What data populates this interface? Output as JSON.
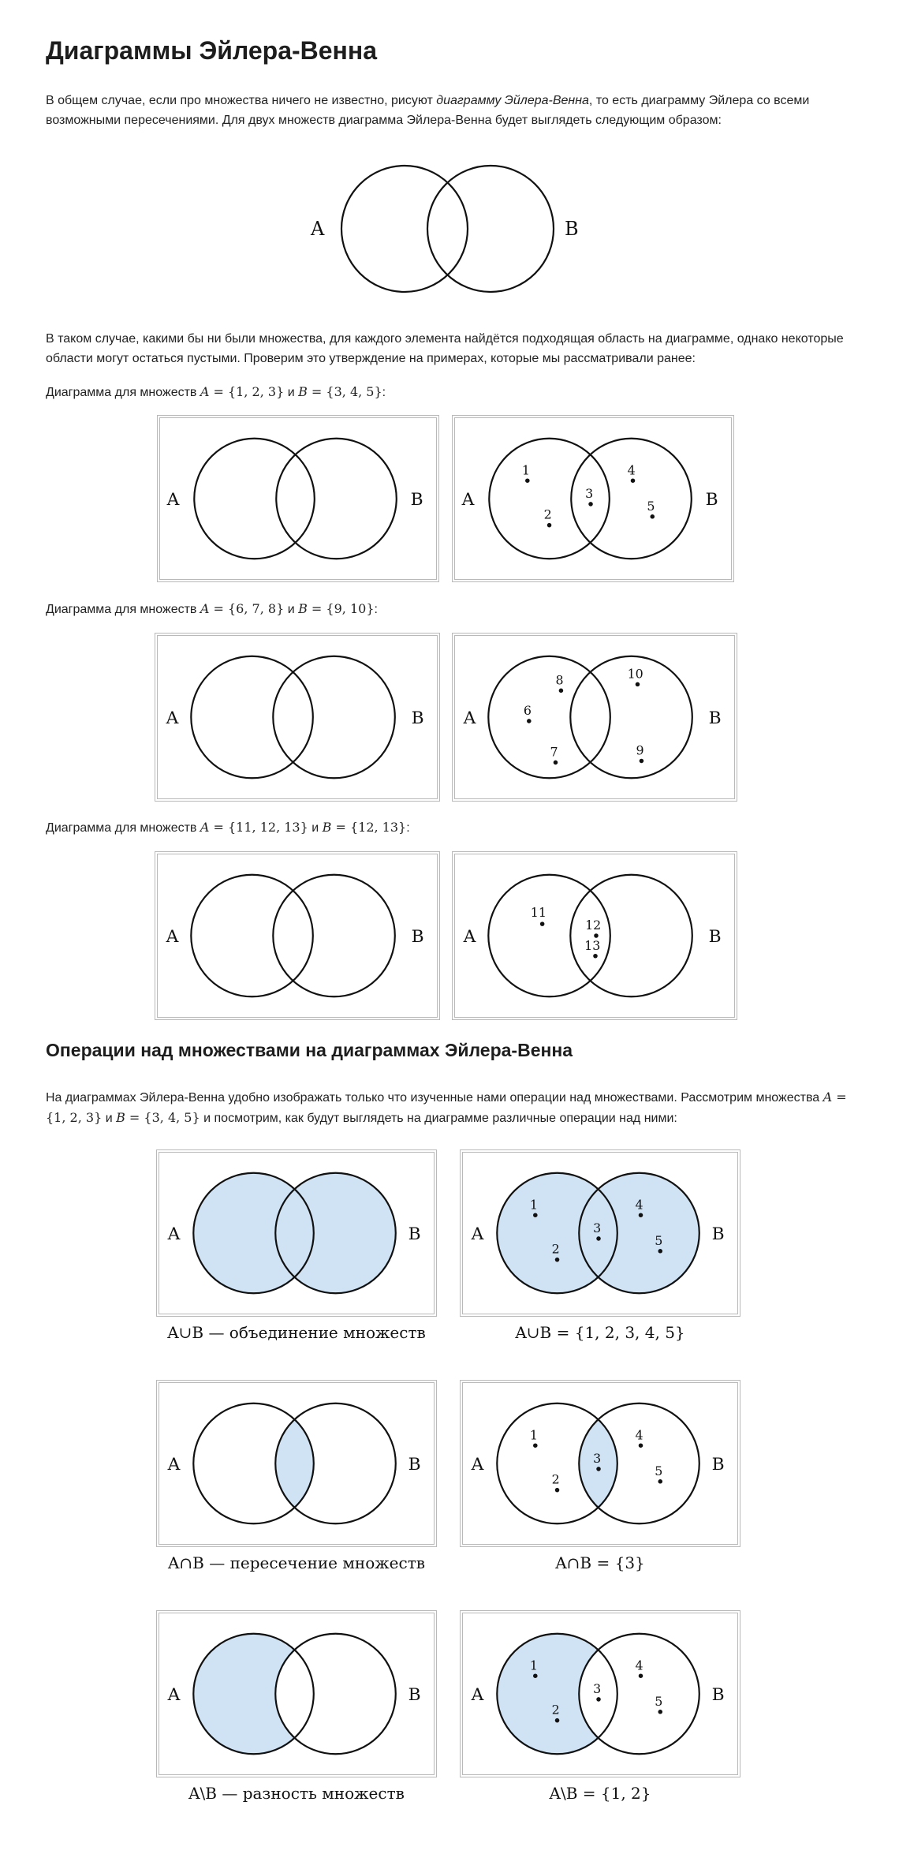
{
  "section1": {
    "title": "Диаграммы Эйлера-Венна",
    "intro_before": "В общем случае, если про множества ничего не известно, рисуют ",
    "intro_italic": "диаграмму Эйлера-Венна",
    "intro_after": ", то есть диаграмму Эйлера со всеми возможными пересечениями. Для двух множеств диаграмма Эйлера-Венна будет выглядеть следующим образом:",
    "para2": "В таком случае, какими бы ни были множества, для каждого элемента найдётся подходящая область на диаграмме, однако некоторые области могут остаться пустыми. Проверим это утверждение на примерах, которые мы рассматривали ранее:",
    "set_a_label": "A",
    "set_b_label": "B"
  },
  "examples": [
    {
      "prefix": "Диаграмма для множеств ",
      "a_name": "A",
      "a_set": " = {1, 2, 3}",
      "mid": " и ",
      "b_name": "B",
      "b_set": " = {3, 4, 5}",
      "suffix": ":",
      "elements": [
        "1",
        "2",
        "3",
        "4",
        "5"
      ]
    },
    {
      "prefix": "Диаграмма для множеств ",
      "a_name": "A",
      "a_set": " = {6, 7, 8}",
      "mid": " и ",
      "b_name": "B",
      "b_set": " = {9, 10}",
      "suffix": ":",
      "elements": [
        "6",
        "7",
        "8",
        "9",
        "10"
      ]
    },
    {
      "prefix": "Диаграмма для множеств ",
      "a_name": "A",
      "a_set": " = {11, 12, 13}",
      "mid": " и ",
      "b_name": "B",
      "b_set": " = {12, 13}",
      "suffix": ":",
      "elements": [
        "11",
        "12",
        "13"
      ]
    }
  ],
  "section2": {
    "title": "Операции над множествами на диаграммах Эйлера-Венна",
    "intro_1": "На диаграммах Эйлера-Венна удобно изображать только что изученные нами операции над множествами. Рассмотрим множества",
    "a_name": "A",
    "a_set": " = {1, 2, 3}",
    "mid": " и ",
    "b_name": "B",
    "b_set": " = {3, 4, 5}",
    "intro_2": " и посмотрим, как будут выглядеть на диаграмме различные операции над ними:"
  },
  "operations": [
    {
      "left_caption": "A∪B — объединение множеств",
      "right_caption": "A∪B = {1, 2, 3, 4, 5}"
    },
    {
      "left_caption": "A∩B — пересечение множеств",
      "right_caption": "A∩B = {3}"
    },
    {
      "left_caption": "A\\B — разность множеств",
      "right_caption": "A\\B = {1, 2}"
    }
  ],
  "colors": {
    "fill": "#cfe3f5",
    "stroke": "#111111",
    "frame": "#b9b9b9"
  }
}
